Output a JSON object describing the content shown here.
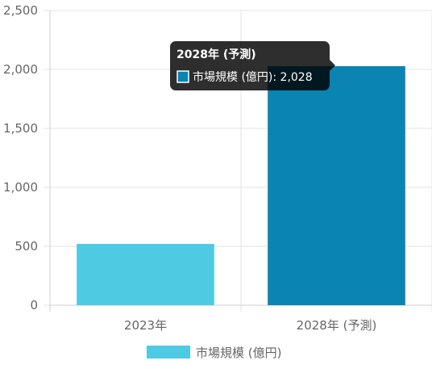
{
  "chart_data": {
    "type": "bar",
    "categories": [
      "2023年",
      "2028年 (予測)"
    ],
    "series": [
      {
        "name": "市場規模 (億円)",
        "values": [
          520,
          2028
        ],
        "colors": [
          "#4ecae3",
          "#0a84b3"
        ]
      }
    ],
    "ylim": [
      0,
      2500
    ],
    "yticks": [
      "0",
      "500",
      "1,000",
      "1,500",
      "2,000",
      "2,500"
    ],
    "ytick_values": [
      0,
      500,
      1000,
      1500,
      2000,
      2500
    ],
    "grid": true,
    "legend": {
      "position": "bottom",
      "label": "市場規模 (億円)",
      "color": "#4ecae3"
    },
    "tooltip": {
      "category_index": 1,
      "title": "2028年 (予測)",
      "body": "市場規模 (億円): 2,028",
      "swatch_color": "#0a84b3"
    }
  }
}
